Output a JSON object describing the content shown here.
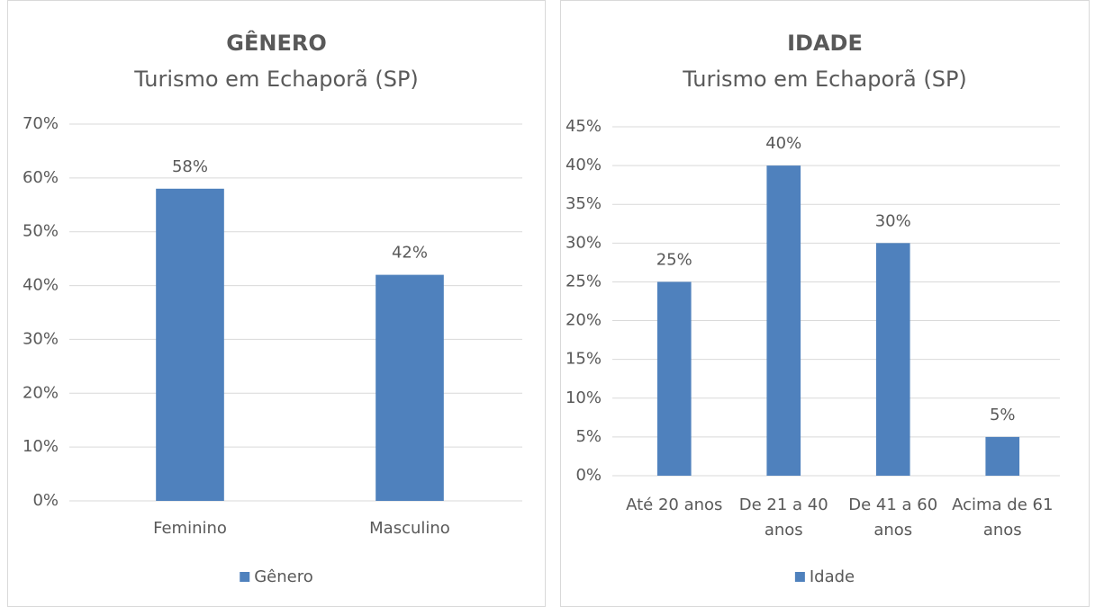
{
  "chart_data": [
    {
      "type": "bar",
      "title": "GÊNERO",
      "subtitle": "Turismo em Echaporã (SP)",
      "categories": [
        "Feminino",
        "Masculino"
      ],
      "series": [
        {
          "name": "Gênero",
          "color": "#4f81bd",
          "values": [
            58,
            42
          ],
          "value_labels": [
            "58%",
            "42%"
          ]
        }
      ],
      "ylim": [
        0,
        70
      ],
      "yticks": [
        {
          "value": 0,
          "label": "0%"
        },
        {
          "value": 10,
          "label": "10%"
        },
        {
          "value": 20,
          "label": "20%"
        },
        {
          "value": 30,
          "label": "30%"
        },
        {
          "value": 40,
          "label": "40%"
        },
        {
          "value": 50,
          "label": "50%"
        },
        {
          "value": 60,
          "label": "60%"
        },
        {
          "value": 70,
          "label": "70%"
        }
      ],
      "grid": true,
      "legend": "bottom"
    },
    {
      "type": "bar",
      "title": "IDADE",
      "subtitle": "Turismo em Echaporã (SP)",
      "categories": [
        "Até 20 anos",
        "De 21 a 40 anos",
        "De 41 a 60 anos",
        "Acima de 61 anos"
      ],
      "series": [
        {
          "name": "Idade",
          "color": "#4f81bd",
          "values": [
            25,
            40,
            30,
            5
          ],
          "value_labels": [
            "25%",
            "40%",
            "30%",
            "5%"
          ]
        }
      ],
      "ylim": [
        0,
        45
      ],
      "yticks": [
        {
          "value": 0,
          "label": "0%"
        },
        {
          "value": 5,
          "label": "5%"
        },
        {
          "value": 10,
          "label": "10%"
        },
        {
          "value": 15,
          "label": "15%"
        },
        {
          "value": 20,
          "label": "20%"
        },
        {
          "value": 25,
          "label": "25%"
        },
        {
          "value": 30,
          "label": "30%"
        },
        {
          "value": 35,
          "label": "35%"
        },
        {
          "value": 40,
          "label": "40%"
        },
        {
          "value": 45,
          "label": "45%"
        }
      ],
      "grid": true,
      "legend": "bottom"
    }
  ]
}
